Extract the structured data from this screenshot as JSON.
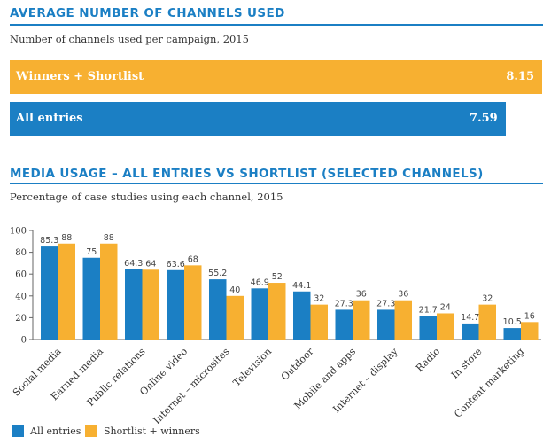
{
  "avg_section": {
    "title": "AVERAGE NUMBER OF CHANNELS USED",
    "subtitle": "Number of channels used per campaign, 2015",
    "bars": [
      {
        "label": "Winners + Shortlist",
        "value": 8.15,
        "value_text": "8.15",
        "color": "#f7b031"
      },
      {
        "label": "All entries",
        "value": 7.59,
        "value_text": "7.59",
        "color": "#1b7fc4"
      }
    ]
  },
  "media_section": {
    "title": "MEDIA USAGE – ALL ENTRIES VS SHORTLIST (SELECTED CHANNELS)",
    "subtitle": "Percentage of case studies using each channel, 2015"
  },
  "chart_data": [
    {
      "type": "bar",
      "orientation": "horizontal",
      "title": "AVERAGE NUMBER OF CHANNELS USED",
      "subtitle": "Number of channels used per campaign, 2015",
      "categories": [
        "Winners + Shortlist",
        "All entries"
      ],
      "values": [
        8.15,
        7.59
      ]
    },
    {
      "type": "bar",
      "title": "MEDIA USAGE – ALL ENTRIES VS SHORTLIST (SELECTED CHANNELS)",
      "subtitle": "Percentage of case studies using each channel, 2015",
      "categories": [
        "Social media",
        "Earned media",
        "Public relations",
        "Online video",
        "Internet – microsites",
        "Television",
        "Outdoor",
        "Mobile and apps",
        "Internet – display",
        "Radio",
        "In store",
        "Content marketing"
      ],
      "series": [
        {
          "name": "All entries",
          "color": "#1b7fc4",
          "values": [
            85.3,
            75,
            64.3,
            63.6,
            55.2,
            46.9,
            44.1,
            27.3,
            27.3,
            21.7,
            14.7,
            10.5
          ]
        },
        {
          "name": "Shortlist + winners",
          "color": "#f7b031",
          "values": [
            88,
            88,
            64,
            68,
            40,
            52,
            32,
            36,
            36,
            24,
            32,
            16
          ]
        }
      ],
      "ylim": [
        0,
        100
      ],
      "yticks": [
        0,
        20,
        40,
        60,
        80,
        100
      ],
      "grid": false,
      "legend": "bottom-left"
    }
  ]
}
